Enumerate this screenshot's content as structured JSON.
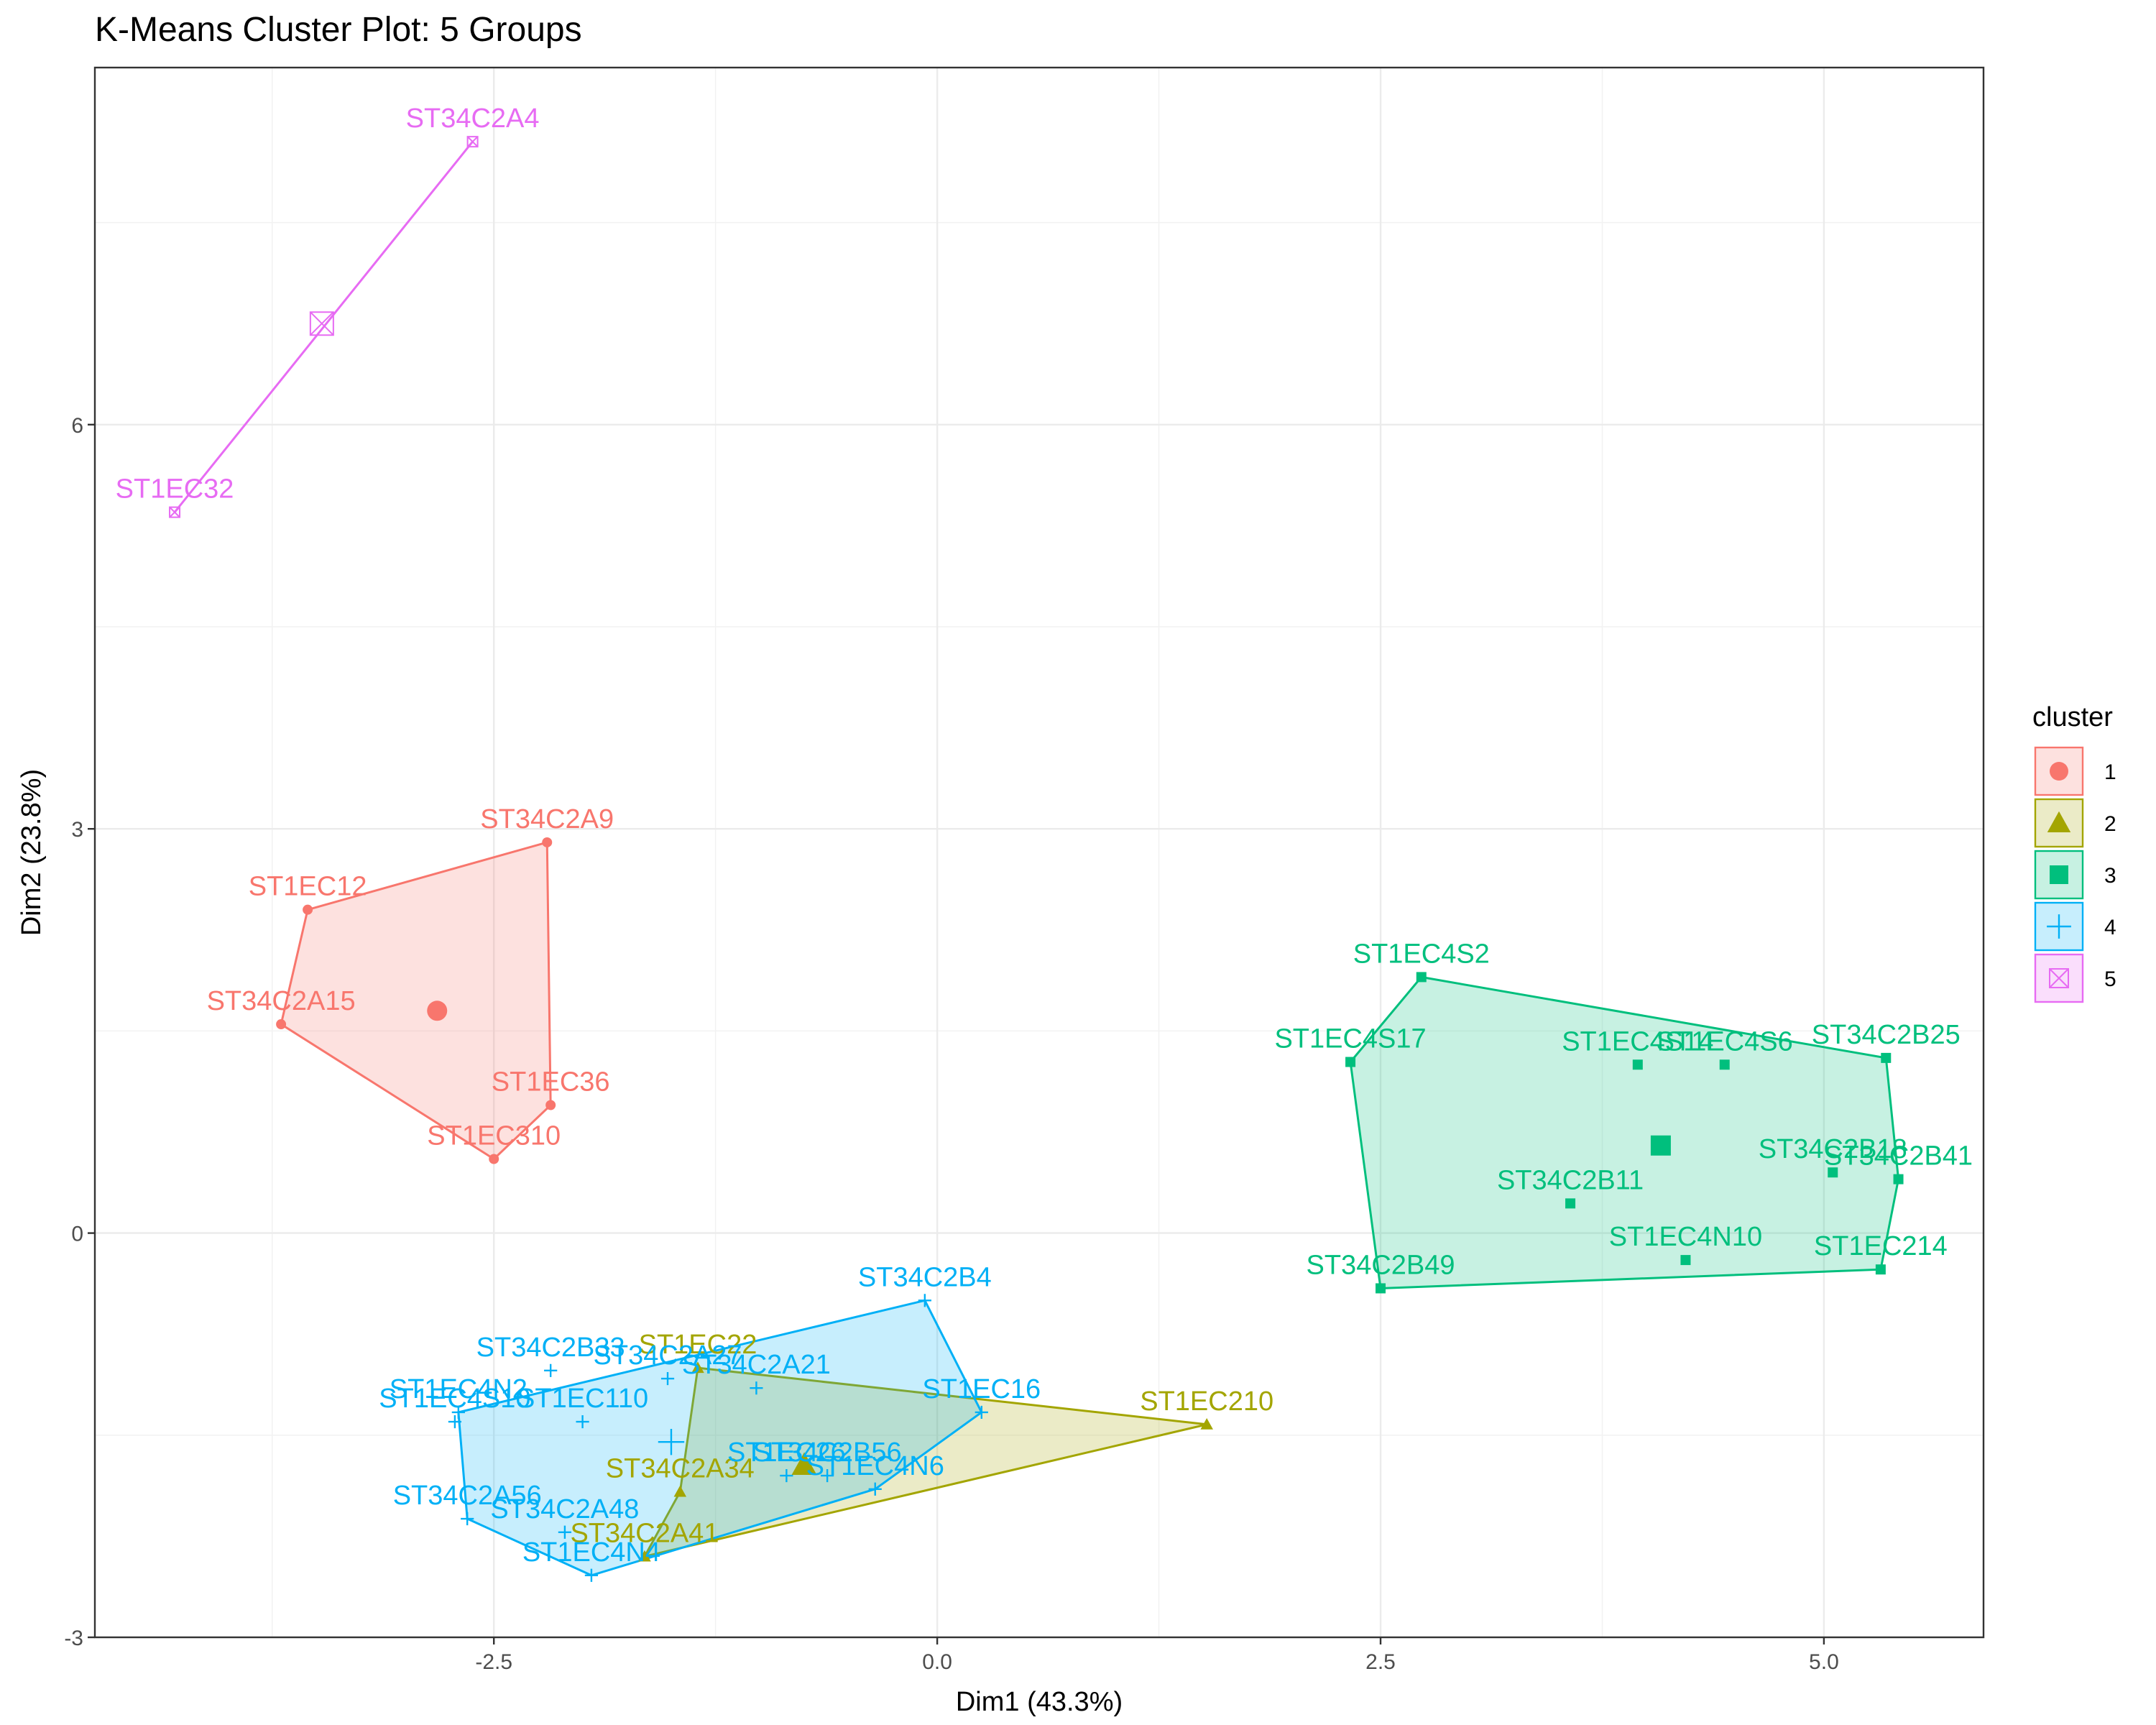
{
  "chart_data": {
    "type": "scatter",
    "title": "K-Means Cluster Plot: 5 Groups",
    "xlabel": "Dim1 (43.3%)",
    "ylabel": "Dim2 (23.8%)",
    "xlim": [
      -4.75,
      5.9
    ],
    "ylim": [
      -3.0,
      8.65
    ],
    "x_ticks": [
      -2.5,
      0.0,
      2.5,
      5.0
    ],
    "x_tick_labels": [
      "-2.5",
      "0.0",
      "2.5",
      "5.0"
    ],
    "y_ticks": [
      -3,
      0,
      3,
      6
    ],
    "y_tick_labels": [
      "-3",
      "0",
      "3",
      "6"
    ],
    "grid": true,
    "legend_title": "cluster",
    "legend_position": "right",
    "series": [
      {
        "name": "1",
        "color": "#F8766D",
        "marker": "circle",
        "hull": [
          "ST34C2A15",
          "ST1EC12",
          "ST34C2A9",
          "ST1EC36",
          "ST1EC310"
        ],
        "center": {
          "x": -2.82,
          "y": 1.65
        },
        "points": [
          {
            "label": "ST34C2A9",
            "x": -2.2,
            "y": 2.9
          },
          {
            "label": "ST1EC12",
            "x": -3.55,
            "y": 2.4
          },
          {
            "label": "ST34C2A15",
            "x": -3.7,
            "y": 1.55
          },
          {
            "label": "ST1EC36",
            "x": -2.18,
            "y": 0.95
          },
          {
            "label": "ST1EC310",
            "x": -2.5,
            "y": 0.55
          }
        ]
      },
      {
        "name": "2",
        "color": "#A3A500",
        "marker": "triangle",
        "hull": [
          "ST1EC22",
          "ST1EC210",
          "ST34C2A41",
          "ST34C2A34"
        ],
        "center": {
          "x": -0.75,
          "y": -1.72
        },
        "points": [
          {
            "label": "ST1EC22",
            "x": -1.35,
            "y": -1.0
          },
          {
            "label": "ST1EC210",
            "x": 1.52,
            "y": -1.42
          },
          {
            "label": "ST34C2A34",
            "x": -1.45,
            "y": -1.92
          },
          {
            "label": "ST34C2A41",
            "x": -1.65,
            "y": -2.4
          }
        ]
      },
      {
        "name": "3",
        "color": "#00BF7D",
        "marker": "square",
        "hull": [
          "ST1EC4S2",
          "ST34C2B25",
          "ST34C2B41",
          "ST1EC214",
          "ST34C2B49",
          "ST1EC4S17"
        ],
        "center": {
          "x": 4.08,
          "y": 0.65
        },
        "points": [
          {
            "label": "ST1EC4S2",
            "x": 2.73,
            "y": 1.9
          },
          {
            "label": "ST1EC4S17",
            "x": 2.33,
            "y": 1.27
          },
          {
            "label": "ST1EC4S14",
            "x": 3.95,
            "y": 1.25
          },
          {
            "label": "ST1EC4S6",
            "x": 4.44,
            "y": 1.25
          },
          {
            "label": "ST34C2B25",
            "x": 5.35,
            "y": 1.3
          },
          {
            "label": "ST34C2B18",
            "x": 5.05,
            "y": 0.45
          },
          {
            "label": "ST34C2B41",
            "x": 5.42,
            "y": 0.4
          },
          {
            "label": "ST34C2B11",
            "x": 3.57,
            "y": 0.22
          },
          {
            "label": "ST1EC4N10",
            "x": 4.22,
            "y": -0.2
          },
          {
            "label": "ST1EC214",
            "x": 5.32,
            "y": -0.27
          },
          {
            "label": "ST34C2B49",
            "x": 2.5,
            "y": -0.41
          }
        ]
      },
      {
        "name": "4",
        "color": "#00B0F6",
        "marker": "plus",
        "hull": [
          "ST34C2B4",
          "ST1EC16",
          "ST1EC4N6",
          "ST1EC4N4",
          "ST34C2A56",
          "ST1EC4N2"
        ],
        "center": {
          "x": -1.5,
          "y": -1.55
        },
        "points": [
          {
            "label": "ST34C2B4",
            "x": -0.07,
            "y": -0.5
          },
          {
            "label": "ST34C2B33",
            "x": -2.18,
            "y": -1.02
          },
          {
            "label": "ST34C2A27",
            "x": -1.52,
            "y": -1.08
          },
          {
            "label": "ST34C2A21",
            "x": -1.02,
            "y": -1.15
          },
          {
            "label": "ST1EC16",
            "x": 0.25,
            "y": -1.33
          },
          {
            "label": "ST1EC4N2",
            "x": -2.7,
            "y": -1.33
          },
          {
            "label": "ST1EC4S10",
            "x": -2.72,
            "y": -1.4
          },
          {
            "label": "ST1EC110",
            "x": -2.0,
            "y": -1.4
          },
          {
            "label": "ST34C2B56",
            "x": -0.62,
            "y": -1.8
          },
          {
            "label": "ST1EC26",
            "x": -0.85,
            "y": -1.8
          },
          {
            "label": "ST1EC4N6",
            "x": -0.35,
            "y": -1.9
          },
          {
            "label": "ST34C2A56",
            "x": -2.65,
            "y": -2.12
          },
          {
            "label": "ST34C2A48",
            "x": -2.1,
            "y": -2.22
          },
          {
            "label": "ST1EC4N4",
            "x": -1.95,
            "y": -2.54
          }
        ]
      },
      {
        "name": "5",
        "color": "#E76BF3",
        "marker": "boxcross",
        "hull": [
          "ST34C2A4",
          "ST1EC32"
        ],
        "center": {
          "x": -3.47,
          "y": 6.75
        },
        "points": [
          {
            "label": "ST34C2A4",
            "x": -2.62,
            "y": 8.1
          },
          {
            "label": "ST1EC32",
            "x": -4.3,
            "y": 5.35
          }
        ]
      }
    ]
  }
}
